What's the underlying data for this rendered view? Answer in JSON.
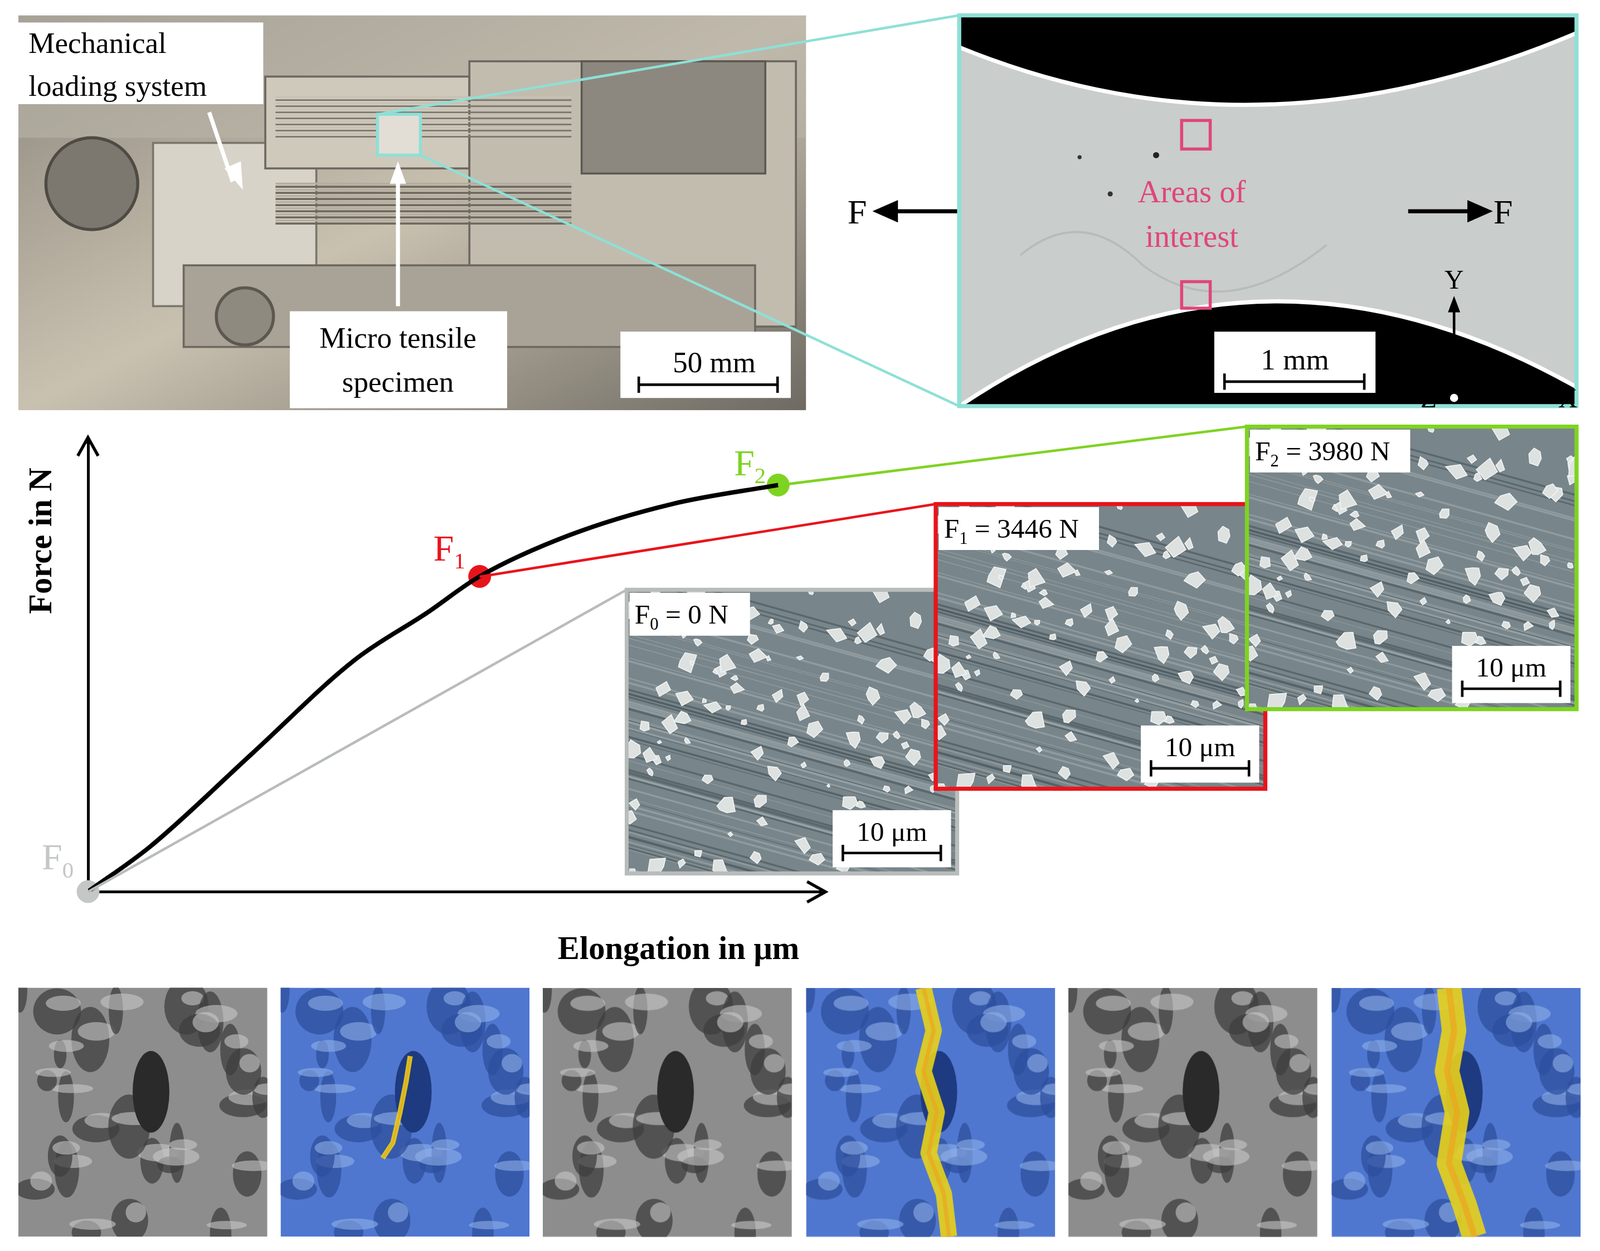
{
  "photo": {
    "callouts": [
      {
        "lines": [
          "Mechanical",
          "loading system"
        ]
      },
      {
        "lines": [
          "Micro tensile",
          "specimen"
        ]
      }
    ],
    "scale_bar": "50 mm"
  },
  "specimen": {
    "annotation": [
      "Areas of",
      "interest"
    ],
    "annotation_color": "#e0457b",
    "force": "F",
    "scale_bar": "1 mm",
    "axes": {
      "x": "X",
      "y": "Y",
      "z": "Z"
    },
    "frame_color": "#8ee0d6"
  },
  "chart_data": {
    "type": "line",
    "x_label": "Elongation in μm",
    "y_label": "Force in N",
    "x": [
      0,
      8.4,
      22.4,
      36.4,
      46.2,
      53.4,
      65.7,
      79.7,
      94.1
    ],
    "values": [
      0,
      9.9,
      30.7,
      51.5,
      61.9,
      70,
      79.2,
      86.1,
      90.3
    ],
    "color": "#000000",
    "xlim": [
      0,
      100
    ],
    "ylim": [
      0,
      100
    ],
    "xticks": [],
    "yticks": [],
    "grid": false,
    "tick_labels": false,
    "points": [
      {
        "label": "F",
        "subscript": "0",
        "x": 0,
        "y": 0,
        "color": "#c3c7c5"
      },
      {
        "label": "F",
        "subscript": "1",
        "x": 53.4,
        "y": 70,
        "color": "#e8141b"
      },
      {
        "label": "F",
        "subscript": "2",
        "x": 94.1,
        "y": 90.3,
        "color": "#7ed321"
      }
    ]
  },
  "insets": [
    {
      "label": "F",
      "subscript": "0",
      "text": " = 0 N",
      "scale_bar": "10 μm",
      "color": "#b8bcba"
    },
    {
      "label": "F",
      "subscript": "1",
      "text": " = 3446 N",
      "scale_bar": "10 μm",
      "color": "#e8141b"
    },
    {
      "label": "F",
      "subscript": "2",
      "text": " = 3980 N",
      "scale_bar": "10 μm",
      "color": "#7ed321"
    }
  ]
}
